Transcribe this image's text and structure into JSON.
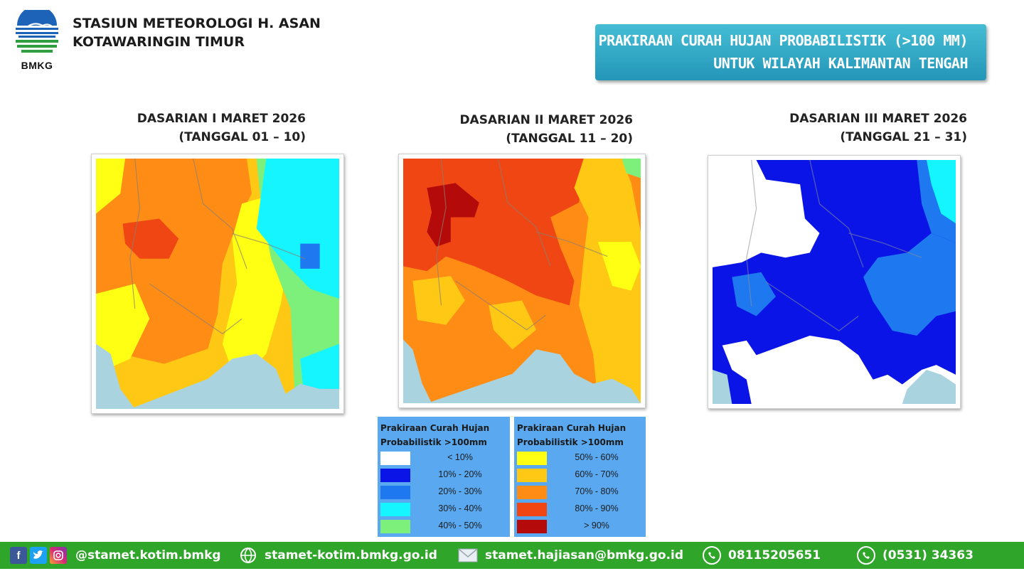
{
  "header": {
    "logo_text": "BMKG",
    "station_line1": "STASIUN METEOROLOGI H. ASAN",
    "station_line2": "KOTAWARINGIN TIMUR",
    "banner_line1": "PRAKIRAAN CURAH HUJAN PROBABILISTIK (>100 MM)",
    "banner_line2": "UNTUK WILAYAH KALIMANTAN TENGAH"
  },
  "panels": [
    {
      "title_line1": "DASARIAN I MARET  2026",
      "title_line2": "(TANGGAL 01 – 10)"
    },
    {
      "title_line1": "DASARIAN II MARET  2026",
      "title_line2": "(TANGGAL 11 – 20)"
    },
    {
      "title_line1": "DASARIAN III MARET  2026",
      "title_line2": "(TANGGAL 21 – 31)"
    }
  ],
  "legend": {
    "title_line1": "Prakiraan Curah Hujan",
    "title_line2": "Probabilistik >100mm",
    "left": [
      {
        "label": "< 10%",
        "color": "#ffffff"
      },
      {
        "label": "10% - 20%",
        "color": "#0a14e6"
      },
      {
        "label": "20% - 30%",
        "color": "#1e78f0"
      },
      {
        "label": "30% - 40%",
        "color": "#14f5ff"
      },
      {
        "label": "40% - 50%",
        "color": "#7cf07a"
      }
    ],
    "right": [
      {
        "label": "50% - 60%",
        "color": "#ffff14"
      },
      {
        "label": "60% - 70%",
        "color": "#ffc814"
      },
      {
        "label": "70% - 80%",
        "color": "#ff8c14"
      },
      {
        "label": "80% - 90%",
        "color": "#f04614"
      },
      {
        "label": "> 90%",
        "color": "#b40a0a"
      }
    ]
  },
  "footer": {
    "social": "@stamet.kotim.bmkg",
    "website": "stamet-kotim.bmkg.go.id",
    "email": "stamet.hajiasan@bmkg.go.id",
    "whatsapp": "08115205651",
    "phone": "(0531) 34363"
  },
  "colors": {
    "banner": "#2ba3c4",
    "footer": "#2fa52a",
    "legend_bg": "#5aa9f0",
    "sea": "#a9d3df"
  },
  "icons": [
    "facebook-icon",
    "twitter-icon",
    "instagram-icon",
    "globe-icon",
    "mail-icon",
    "whatsapp-icon",
    "phone-icon"
  ]
}
